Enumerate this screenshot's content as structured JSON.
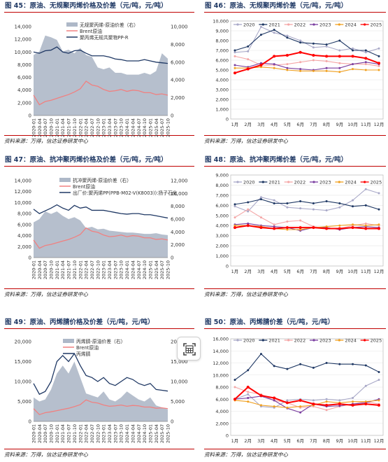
{
  "figures": [
    {
      "id": "f45",
      "title": "图 45：原油、无规聚丙烯价格及价差（元/吨，元/吨）",
      "source": "资料来源：万得，信达证券研发中心"
    },
    {
      "id": "f46",
      "title": "图 46：原油、无规聚丙烯价差（元/吨，元/吨）",
      "source": "资料来源：万得，信达证券研发中心"
    },
    {
      "id": "f47",
      "title": "图 47：原油、抗冲聚丙烯价格及价差（元/吨，元/吨）",
      "source": "资料来源：万得，信达证券研发中心"
    },
    {
      "id": "f48",
      "title": "图 48：原油、抗冲聚丙烯价差（元/吨，元/吨）",
      "source": "资料来源：万得，信达证券研发中心"
    },
    {
      "id": "f49",
      "title": "图 49：原油、丙烯腈价格及价差（元/吨，元/吨）",
      "source": "资料来源：万得，信达证券研发中心"
    },
    {
      "id": "f50",
      "title": "图 50：原油、丙烯腈价差（元/吨，元/吨）",
      "source": "资料来源：万得，信达证券研发中心"
    }
  ],
  "chart_data": [
    {
      "type": "area",
      "x_ticks": [
        "2020-01",
        "2020-04",
        "2020-07",
        "2020-10",
        "2021-01",
        "2021-04",
        "2021-07",
        "2021-10",
        "2022-01",
        "2022-04",
        "2022-07",
        "2022-10",
        "2023-01",
        "2023-04",
        "2023-07",
        "2023-10",
        "2024-01",
        "2024-04",
        "2024-07",
        "2024-10",
        "2025-01",
        "2025-04",
        "2025-07",
        "2025-10"
      ],
      "y_left_ticks": [
        "0",
        "2,000",
        "4,000",
        "6,000",
        "8,000",
        "10,000",
        "12,000",
        "14,000"
      ],
      "y_right_ticks": [
        "0",
        "2,000",
        "4,000",
        "6,000",
        "8,000",
        "10,000"
      ],
      "ylim_left": [
        0,
        14000
      ],
      "ylim_right": [
        0,
        10000
      ],
      "legend": [
        "无规聚丙烯-原油价差（右）",
        "Brent原油",
        "聚丙烯无规共聚物PP-R"
      ],
      "colors": [
        "#aeb8c8",
        "#f08080",
        "#1f3864"
      ],
      "series": [
        {
          "name": "无规聚丙烯-原油价差（右）",
          "axis": "right",
          "values": [
            6800,
            7200,
            9000,
            8800,
            8500,
            7200,
            7400,
            7000,
            7600,
            6800,
            6600,
            5400,
            5200,
            5400,
            4800,
            4800,
            4600,
            4600,
            4600,
            4800,
            4600,
            5000,
            7000,
            6400
          ]
        },
        {
          "name": "Brent原油",
          "axis": "left",
          "values": [
            3200,
            1700,
            2200,
            2400,
            2700,
            3000,
            3300,
            3700,
            4200,
            5400,
            4800,
            4600,
            4100,
            3800,
            3900,
            4100,
            3800,
            4000,
            3900,
            3600,
            3600,
            3300,
            3400,
            3200
          ]
        },
        {
          "name": "聚丙烯无规共聚物PP-R",
          "axis": "left",
          "values": [
            10000,
            9800,
            10200,
            10300,
            10800,
            10000,
            9800,
            10200,
            10300,
            9800,
            9400,
            9400,
            9400,
            9200,
            8900,
            8800,
            8600,
            8600,
            8600,
            8800,
            8600,
            8400,
            8300,
            8200
          ]
        }
      ]
    },
    {
      "type": "line",
      "x_ticks": [
        "1月",
        "2月",
        "3月",
        "4月",
        "5月",
        "6月",
        "7月",
        "8月",
        "9月",
        "10月",
        "11月",
        "12月"
      ],
      "y_ticks": [
        "0",
        "1,000",
        "2,000",
        "3,000",
        "4,000",
        "5,000",
        "6,000",
        "7,000",
        "8,000",
        "9,000",
        "10,000"
      ],
      "ylim": [
        0,
        10000
      ],
      "series": [
        {
          "name": "2020",
          "color": "#a9a9c8",
          "values": [
            6800,
            6900,
            9400,
            8800,
            8500,
            8000,
            7300,
            7400,
            7000,
            7200,
            6800,
            7200
          ]
        },
        {
          "name": "2021",
          "color": "#1f3864",
          "values": [
            7000,
            7400,
            8600,
            9100,
            8300,
            7800,
            7700,
            7600,
            8000,
            7000,
            7000,
            6400
          ]
        },
        {
          "name": "2022",
          "color": "#f4a6a6",
          "values": [
            6400,
            6100,
            5500,
            5500,
            5600,
            5800,
            6000,
            5900,
            5700,
            5600,
            5600,
            5400
          ]
        },
        {
          "name": "2023",
          "color": "#7b3fa0",
          "values": [
            5500,
            5300,
            5700,
            5600,
            5200,
            5100,
            5000,
            5200,
            5200,
            5600,
            5800,
            5600
          ]
        },
        {
          "name": "2024",
          "color": "#f0a020",
          "values": [
            5200,
            5200,
            5300,
            5200,
            5000,
            4900,
            4900,
            4900,
            4800,
            5100,
            5000,
            5000
          ]
        },
        {
          "name": "2025",
          "color": "#ff0000",
          "values": [
            4700,
            5100,
            5500,
            6400,
            6500,
            6800,
            6500,
            6400,
            6400,
            6400,
            6200,
            5700
          ]
        }
      ]
    },
    {
      "type": "area",
      "x_ticks": [
        "2020-01",
        "2020-04",
        "2020-07",
        "2020-10",
        "2021-01",
        "2021-04",
        "2021-07",
        "2021-10",
        "2022-01",
        "2022-04",
        "2022-07",
        "2022-10",
        "2023-01",
        "2023-04",
        "2023-07",
        "2023-10",
        "2024-01",
        "2024-04",
        "2024-07",
        "2024-10",
        "2025-01",
        "2025-04",
        "2025-07",
        "2025-10"
      ],
      "y_left_ticks": [
        "0",
        "2,000",
        "4,000",
        "6,000",
        "8,000",
        "10,000",
        "12,000",
        "14,000"
      ],
      "y_right_ticks": [
        "0",
        "2,000",
        "4,000",
        "6,000",
        "8,000",
        "10,000",
        "12,000"
      ],
      "ylim_left": [
        0,
        14000
      ],
      "ylim_right": [
        0,
        12000
      ],
      "legend": [
        "抗冲聚丙烯-原油价差（右）",
        "Brent原油",
        "出厂价:聚丙烯PP(PPB-M02-V(K8003)):扬子石化"
      ],
      "colors": [
        "#aeb8c8",
        "#f08080",
        "#1f3864"
      ],
      "series": [
        {
          "name": "抗冲聚丙烯-原油价差（右）",
          "axis": "right",
          "values": [
            5500,
            6000,
            7200,
            6800,
            7200,
            6500,
            6000,
            6300,
            5800,
            4600,
            4800,
            4400,
            4500,
            4200,
            4100,
            4000,
            3900,
            3900,
            3800,
            3700,
            3700,
            3800,
            3600,
            3500
          ]
        },
        {
          "name": "Brent原油",
          "axis": "left",
          "values": [
            3200,
            1700,
            2200,
            2400,
            2700,
            3000,
            3300,
            3700,
            4200,
            5400,
            4800,
            4600,
            4100,
            3800,
            3900,
            4100,
            3800,
            4000,
            3900,
            3600,
            3600,
            3300,
            3400,
            3200
          ]
        },
        {
          "name": "出厂价:聚丙烯PP(PPB-M02-V(K8003)):扬子石化",
          "axis": "left",
          "values": [
            8800,
            8000,
            8500,
            9000,
            9600,
            9000,
            8600,
            9500,
            9000,
            9200,
            8600,
            8600,
            8600,
            8400,
            8200,
            8000,
            7900,
            8000,
            8000,
            7800,
            7800,
            7600,
            7400,
            7200
          ]
        }
      ]
    },
    {
      "type": "line",
      "x_ticks": [
        "1月",
        "2月",
        "3月",
        "4月",
        "5月",
        "6月",
        "7月",
        "8月",
        "9月",
        "10月",
        "11月",
        "12月"
      ],
      "y_ticks": [
        "0",
        "1,000",
        "2,000",
        "3,000",
        "4,000",
        "5,000",
        "6,000",
        "7,000",
        "8,000",
        "9,000"
      ],
      "ylim": [
        0,
        9000
      ],
      "series": [
        {
          "name": "2020",
          "color": "#a9a9c8",
          "values": [
            5900,
            5400,
            6800,
            6500,
            5800,
            5700,
            5600,
            5500,
            5800,
            6500,
            7600,
            7200
          ]
        },
        {
          "name": "2021",
          "color": "#1f3864",
          "values": [
            6100,
            6300,
            6600,
            6200,
            6200,
            6400,
            6200,
            6400,
            6200,
            5900,
            6000,
            5600
          ]
        },
        {
          "name": "2022",
          "color": "#f4a6a6",
          "values": [
            4800,
            5600,
            4800,
            4100,
            4400,
            4500,
            3900,
            3700,
            3700,
            4000,
            4200,
            4000
          ]
        },
        {
          "name": "2023",
          "color": "#7b3fa0",
          "values": [
            4100,
            4200,
            4000,
            3900,
            3800,
            3500,
            3800,
            3800,
            3600,
            3800,
            3900,
            3800
          ]
        },
        {
          "name": "2024",
          "color": "#f0a020",
          "values": [
            4000,
            4000,
            3900,
            3700,
            3600,
            3600,
            3800,
            3900,
            4000,
            4100,
            4000,
            4100
          ]
        },
        {
          "name": "2025",
          "color": "#ff0000",
          "values": [
            3800,
            4000,
            3800,
            3700,
            3800,
            3800,
            3800,
            3700,
            3700,
            3800,
            3700,
            3700
          ]
        }
      ]
    },
    {
      "type": "area",
      "x_ticks": [
        "2020-01",
        "2020-04",
        "2020-07",
        "2020-10",
        "2021-01",
        "2021-04",
        "2021-07",
        "2021-10",
        "2022-01",
        "2022-04",
        "2022-07",
        "2022-10",
        "2023-01",
        "2023-04",
        "2023-07",
        "2023-10",
        "2024-01",
        "2024-04",
        "2024-07",
        "2024-10",
        "2025-01",
        "2025-04",
        "2025-07",
        "2025-10"
      ],
      "y_left_ticks": [
        "0",
        "5,000",
        "10,000",
        "15,000",
        "20,000"
      ],
      "y_right_ticks": [
        "0",
        "5,000",
        "10,000",
        "15,000",
        "20,000"
      ],
      "ylim_left": [
        0,
        20000
      ],
      "ylim_right": [
        0,
        20000
      ],
      "legend": [
        "丙烯腈-原油价差（右）",
        "Brent原油",
        "丙烯腈"
      ],
      "colors": [
        "#aeb8c8",
        "#f08080",
        "#1f3864"
      ],
      "series": [
        {
          "name": "丙烯腈-原油价差（右）",
          "axis": "right",
          "values": [
            6000,
            5000,
            5500,
            8000,
            12000,
            14000,
            12000,
            15000,
            11000,
            7000,
            6500,
            6000,
            7500,
            5500,
            5000,
            6000,
            7500,
            6500,
            5500,
            5000,
            6000,
            4000,
            3500,
            3000
          ]
        },
        {
          "name": "Brent原油",
          "axis": "left",
          "values": [
            3200,
            1700,
            2200,
            2400,
            2700,
            3000,
            3300,
            3700,
            4200,
            5400,
            4800,
            4600,
            4100,
            3800,
            3900,
            4100,
            3800,
            4000,
            3900,
            3600,
            3600,
            3300,
            3400,
            3200
          ]
        },
        {
          "name": "丙烯腈",
          "axis": "left",
          "values": [
            9500,
            6800,
            7500,
            10000,
            15000,
            16500,
            15000,
            17000,
            14000,
            11500,
            11000,
            10000,
            11000,
            9500,
            9000,
            10000,
            11000,
            10500,
            9500,
            9000,
            9500,
            8000,
            7800,
            7600
          ]
        }
      ]
    },
    {
      "type": "line",
      "x_ticks": [
        "1月",
        "2月",
        "3月",
        "4月",
        "5月",
        "6月",
        "7月",
        "8月",
        "9月",
        "10月",
        "11月",
        "12月"
      ],
      "y_ticks": [
        "0",
        "2,000",
        "4,000",
        "6,000",
        "8,000",
        "10,000",
        "12,000",
        "14,000",
        "16,000"
      ],
      "ylim": [
        0,
        16000
      ],
      "series": [
        {
          "name": "2020",
          "color": "#a9a9c8",
          "values": [
            6000,
            6800,
            4800,
            4600,
            5800,
            6000,
            5800,
            6000,
            5800,
            6200,
            8200,
            9200
          ]
        },
        {
          "name": "2021",
          "color": "#1f3864",
          "values": [
            9200,
            10800,
            13500,
            11500,
            11000,
            11800,
            11200,
            12000,
            11800,
            11800,
            11600,
            10500
          ]
        },
        {
          "name": "2022",
          "color": "#f4a6a6",
          "values": [
            8000,
            7200,
            6800,
            5800,
            5400,
            4600,
            4800,
            4200,
            4800,
            5200,
            5600,
            5200
          ]
        },
        {
          "name": "2023",
          "color": "#7b3fa0",
          "values": [
            6000,
            6200,
            6500,
            5800,
            4500,
            3800,
            5200,
            4800,
            4900,
            5200,
            5400,
            6000
          ]
        },
        {
          "name": "2024",
          "color": "#f0a020",
          "values": [
            5800,
            5600,
            5000,
            4800,
            4600,
            4800,
            5000,
            5600,
            5400,
            5600,
            5600,
            5800
          ]
        },
        {
          "name": "2025",
          "color": "#ff0000",
          "values": [
            6000,
            8000,
            6600,
            6200,
            5400,
            5800,
            5200,
            5000,
            5200,
            5000,
            5200,
            5000
          ]
        }
      ]
    }
  ]
}
